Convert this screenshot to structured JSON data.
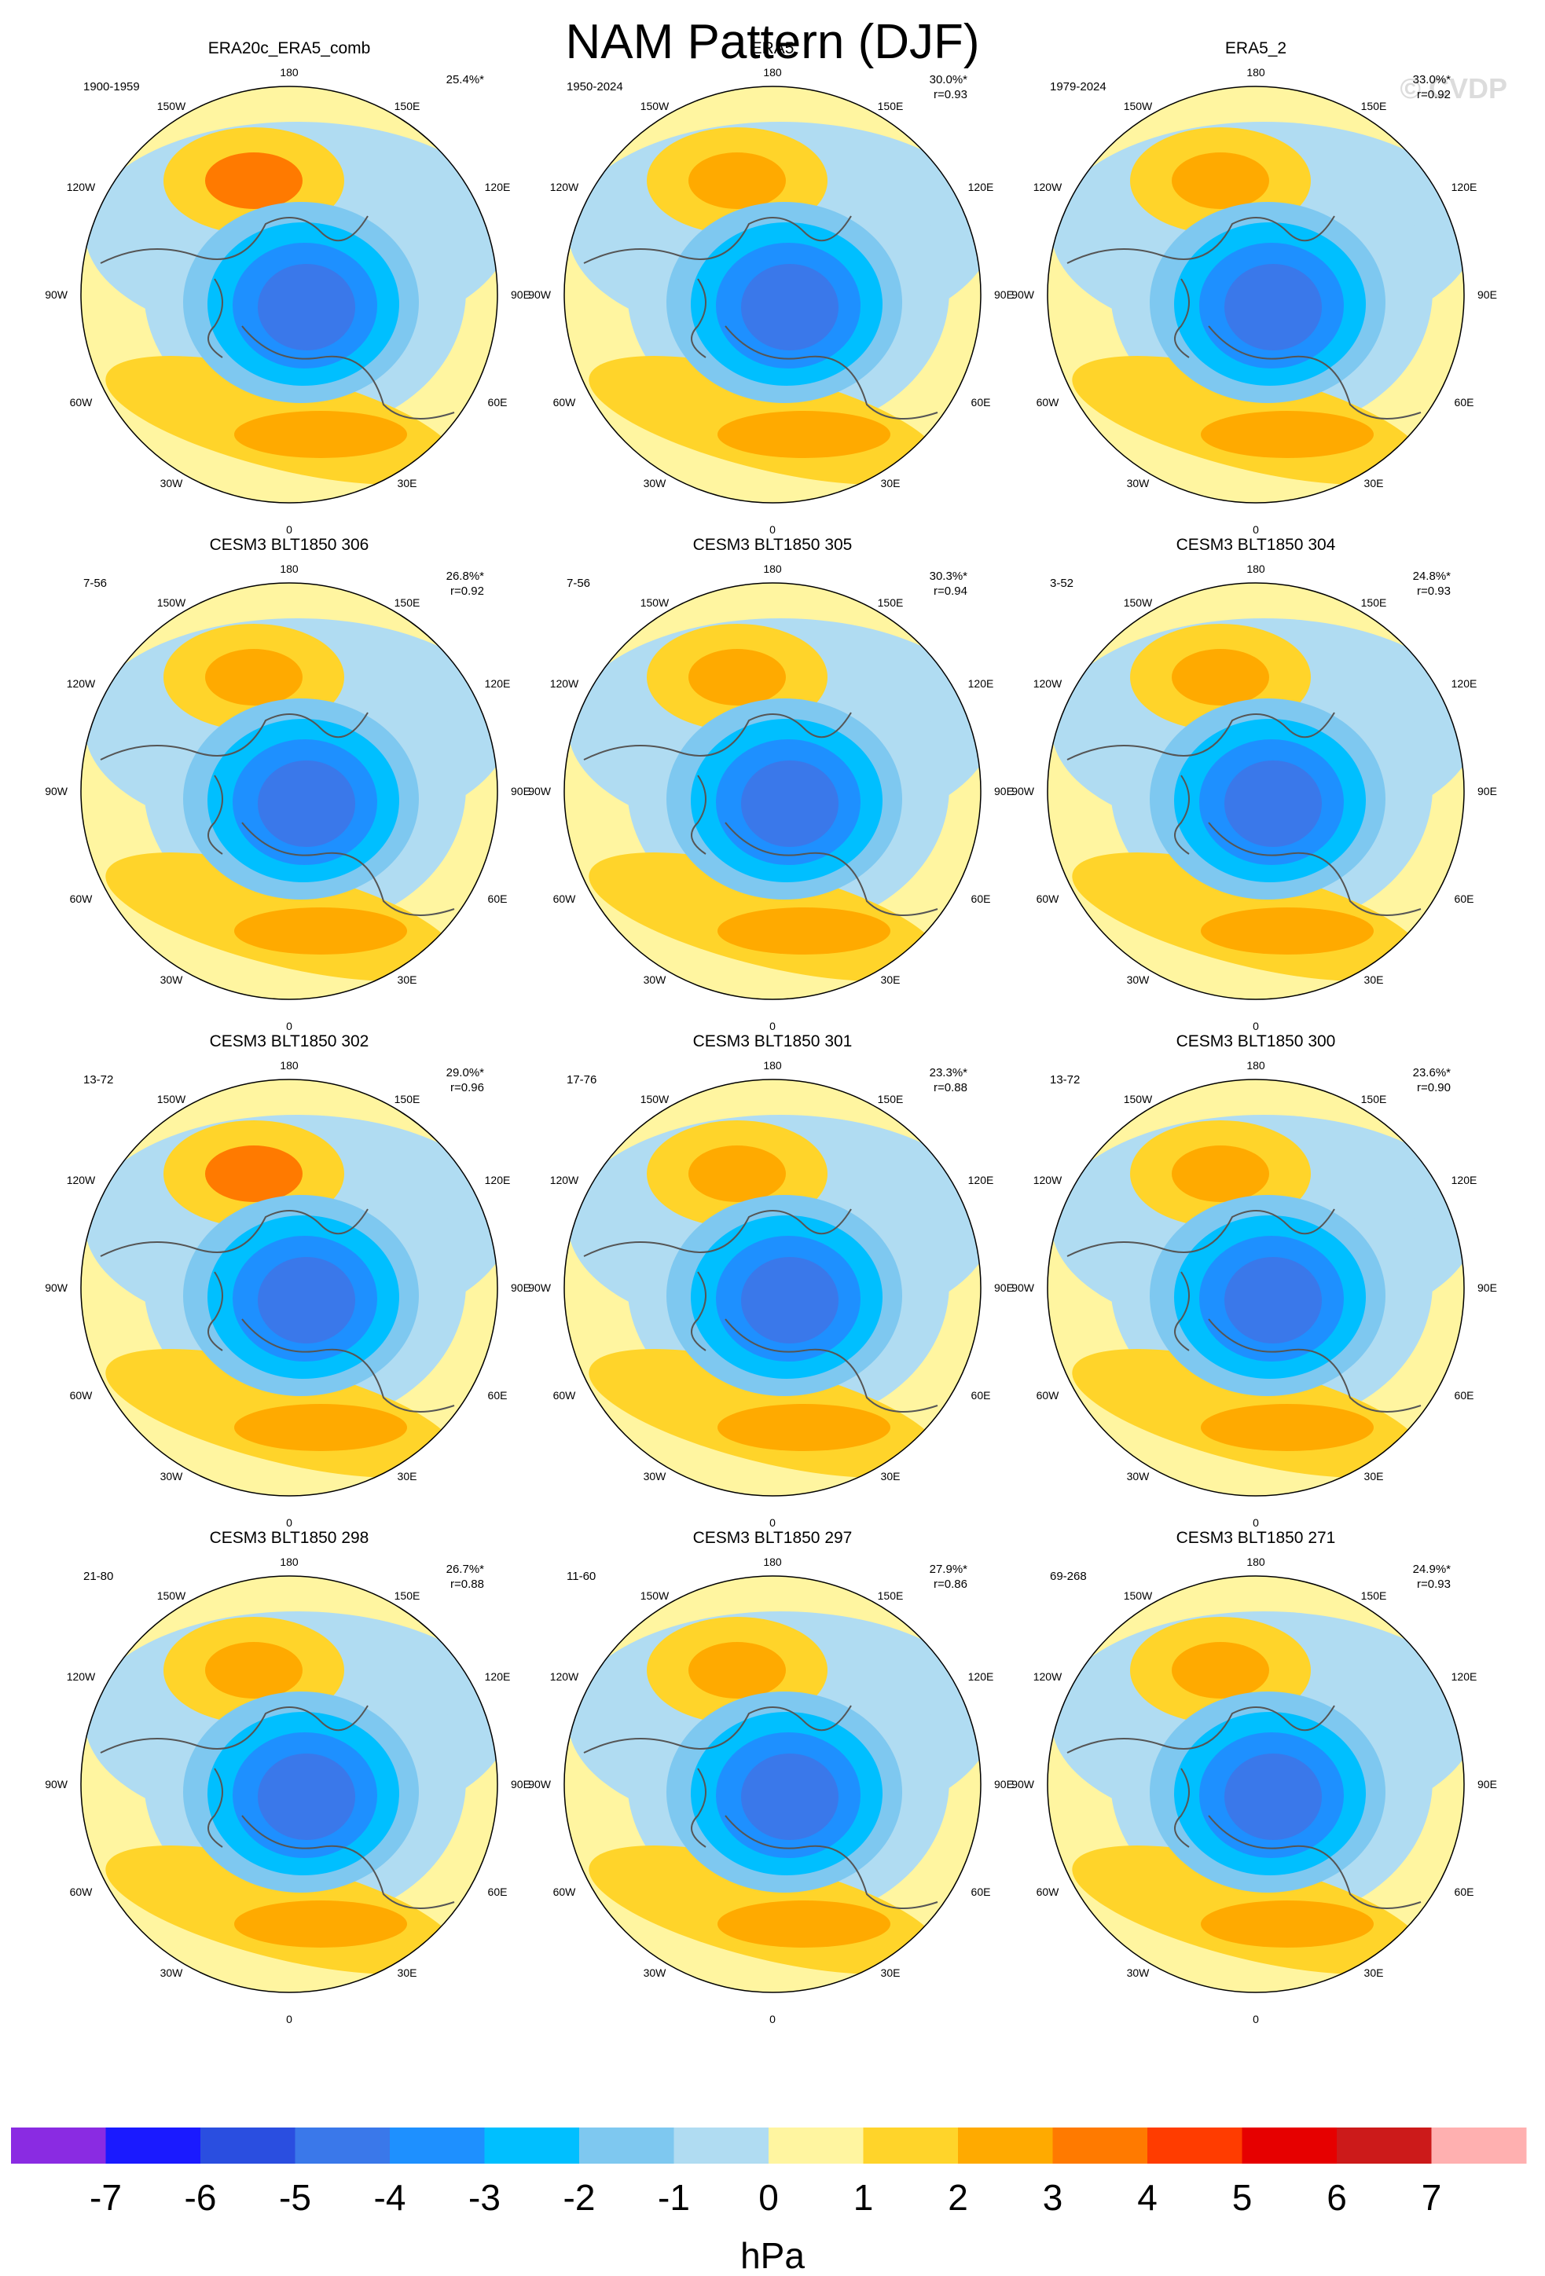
{
  "title": "NAM Pattern (DJF)",
  "watermark": "© CVDP",
  "longitude_labels": [
    "180",
    "150E",
    "120E",
    "90E",
    "60E",
    "30E",
    "0",
    "30W",
    "60W",
    "90W",
    "120W",
    "150W"
  ],
  "panels": [
    {
      "name": "ERA20c_ERA5_comb",
      "years": "1900-1959",
      "pct": "25.4%*",
      "r": ""
    },
    {
      "name": "ERA5",
      "years": "1950-2024",
      "pct": "30.0%*",
      "r": "r=0.93"
    },
    {
      "name": "ERA5_2",
      "years": "1979-2024",
      "pct": "33.0%*",
      "r": "r=0.92"
    },
    {
      "name": "CESM3 BLT1850 306",
      "years": "7-56",
      "pct": "26.8%*",
      "r": "r=0.92"
    },
    {
      "name": "CESM3 BLT1850 305",
      "years": "7-56",
      "pct": "30.3%*",
      "r": "r=0.94"
    },
    {
      "name": "CESM3 BLT1850 304",
      "years": "3-52",
      "pct": "24.8%*",
      "r": "r=0.93"
    },
    {
      "name": "CESM3 BLT1850 302",
      "years": "13-72",
      "pct": "29.0%*",
      "r": "r=0.96"
    },
    {
      "name": "CESM3 BLT1850 301",
      "years": "17-76",
      "pct": "23.3%*",
      "r": "r=0.88"
    },
    {
      "name": "CESM3 BLT1850 300",
      "years": "13-72",
      "pct": "23.6%*",
      "r": "r=0.90"
    },
    {
      "name": "CESM3 BLT1850 298",
      "years": "21-80",
      "pct": "26.7%*",
      "r": "r=0.88"
    },
    {
      "name": "CESM3 BLT1850 297",
      "years": "11-60",
      "pct": "27.9%*",
      "r": "r=0.86"
    },
    {
      "name": "CESM3 BLT1850 271",
      "years": "69-268",
      "pct": "24.9%*",
      "r": "r=0.93"
    }
  ],
  "colorbar": {
    "labels": [
      "-7",
      "-6",
      "-5",
      "-4",
      "-3",
      "-2",
      "-1",
      "0",
      "1",
      "2",
      "3",
      "4",
      "5",
      "6",
      "7"
    ],
    "colors": [
      "#8a2be2",
      "#1a1aff",
      "#2a4ee0",
      "#3a78ea",
      "#1e90ff",
      "#00bfff",
      "#7ec8f0",
      "#b0dcf2",
      "#fff5a0",
      "#ffd42a",
      "#ffaa00",
      "#ff7a00",
      "#ff3c00",
      "#e60000",
      "#cc1a1a",
      "#ffb0b0"
    ],
    "units": "hPa"
  }
}
